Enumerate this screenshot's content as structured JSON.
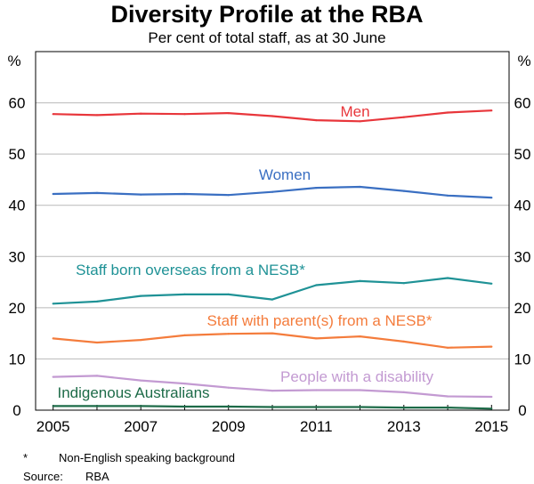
{
  "chart_data": {
    "type": "line",
    "title": "Diversity Profile at the RBA",
    "subtitle": "Per cent of total staff, as at 30 June",
    "ylabel_left": "%",
    "ylabel_right": "%",
    "ylim": [
      0,
      70
    ],
    "yticks": [
      0,
      10,
      20,
      30,
      40,
      50,
      60
    ],
    "xlim": [
      2005,
      2015
    ],
    "x": [
      2005,
      2006,
      2007,
      2008,
      2009,
      2010,
      2011,
      2012,
      2013,
      2014,
      2015
    ],
    "xtick_labels": [
      "2005",
      "2007",
      "2009",
      "2011",
      "2013",
      "2015"
    ],
    "grid": true,
    "series": [
      {
        "name": "Men",
        "color": "#e8363b",
        "values": [
          57.8,
          57.6,
          57.9,
          57.8,
          58.0,
          57.4,
          56.6,
          56.4,
          57.2,
          58.1,
          58.5
        ]
      },
      {
        "name": "Women",
        "color": "#3a6fc2",
        "values": [
          42.2,
          42.4,
          42.1,
          42.2,
          42.0,
          42.6,
          43.4,
          43.6,
          42.8,
          41.9,
          41.5
        ]
      },
      {
        "name": "Staff born overseas from a NESB*",
        "color": "#1f9296",
        "values": [
          20.8,
          21.2,
          22.3,
          22.6,
          22.6,
          21.6,
          24.4,
          25.2,
          24.8,
          25.8,
          24.7
        ]
      },
      {
        "name": "Staff with parent(s) from a NESB*",
        "color": "#f47c3c",
        "values": [
          14.0,
          13.2,
          13.7,
          14.6,
          14.9,
          15.0,
          14.0,
          14.4,
          13.4,
          12.2,
          12.4
        ]
      },
      {
        "name": "People with a disability",
        "color": "#c39ad2",
        "values": [
          6.5,
          6.7,
          5.8,
          5.2,
          4.4,
          3.8,
          3.9,
          3.9,
          3.5,
          2.7,
          2.6
        ]
      },
      {
        "name": "Indigenous Australians",
        "color": "#1d6b48",
        "values": [
          0.8,
          0.8,
          0.8,
          0.7,
          0.7,
          0.6,
          0.6,
          0.6,
          0.5,
          0.5,
          0.3
        ]
      }
    ]
  },
  "footnote": {
    "marker": "*",
    "text": "Non-English speaking background"
  },
  "source": {
    "label": "Source:",
    "text": "RBA"
  }
}
